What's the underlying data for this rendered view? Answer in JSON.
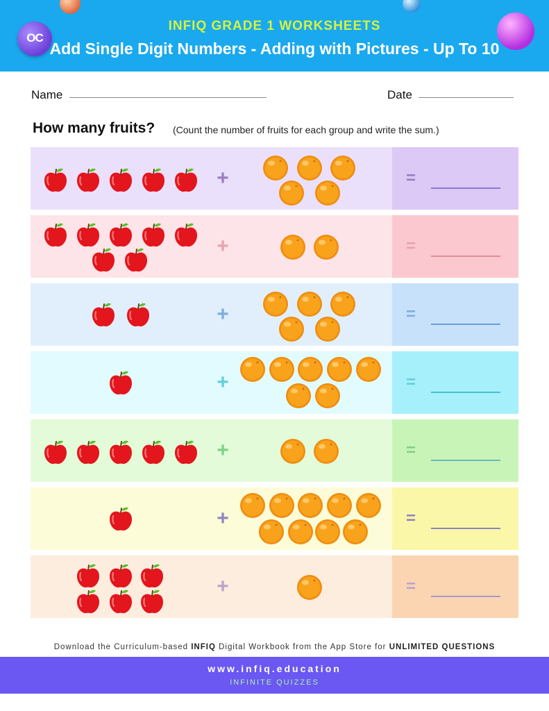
{
  "header": {
    "logo_text": "OC",
    "kicker": "INFIQ GRADE 1 WORKSHEETS",
    "title": "Add Single Digit Numbers - Adding with Pictures - Up To 10"
  },
  "form": {
    "name_label": "Name",
    "date_label": "Date"
  },
  "question": {
    "title": "How many fruits?",
    "hint": "(Count the number of fruits for each group and write the sum.)"
  },
  "symbols": {
    "plus": "+",
    "equals": "="
  },
  "problems": [
    {
      "apples": 5,
      "oranges": 5,
      "colors": {
        "bg": "#ebe0fb",
        "answer_bg": "#dcc9f6",
        "symbol": "#9a7fc0",
        "line": "#8a7bd0"
      }
    },
    {
      "apples": 7,
      "oranges": 2,
      "colors": {
        "bg": "#fde4e8",
        "answer_bg": "#fbc8cf",
        "symbol": "#e8a2ad",
        "line": "#e58d98"
      }
    },
    {
      "apples": 2,
      "oranges": 5,
      "colors": {
        "bg": "#e1effc",
        "answer_bg": "#c7e1fb",
        "symbol": "#7faee0",
        "line": "#6b9fd6"
      }
    },
    {
      "apples": 1,
      "oranges": 7,
      "colors": {
        "bg": "#e2fbfe",
        "answer_bg": "#a6f0fb",
        "symbol": "#62d0db",
        "line": "#4bbcd0"
      }
    },
    {
      "apples": 5,
      "oranges": 2,
      "colors": {
        "bg": "#e3fbd9",
        "answer_bg": "#c9f4b7",
        "symbol": "#7fd08a",
        "line": "#6fb6c0"
      }
    },
    {
      "apples": 1,
      "oranges": 9,
      "colors": {
        "bg": "#fdfcd8",
        "answer_bg": "#fbf7a8",
        "symbol": "#8f86bf",
        "line": "#8a87c0"
      }
    },
    {
      "apples": 6,
      "oranges": 1,
      "colors": {
        "bg": "#fdeddf",
        "answer_bg": "#fbd4b2",
        "symbol": "#b9a4c9",
        "line": "#a89ac4"
      }
    }
  ],
  "footer": {
    "note_pre": "Download the Curriculum-based",
    "note_brand": "INFIQ",
    "note_mid": "Digital Workbook from the App Store for",
    "note_bold": "UNLIMITED QUESTIONS",
    "url": "www.infiq.education",
    "tagline": "INFINITE QUIZZES"
  }
}
